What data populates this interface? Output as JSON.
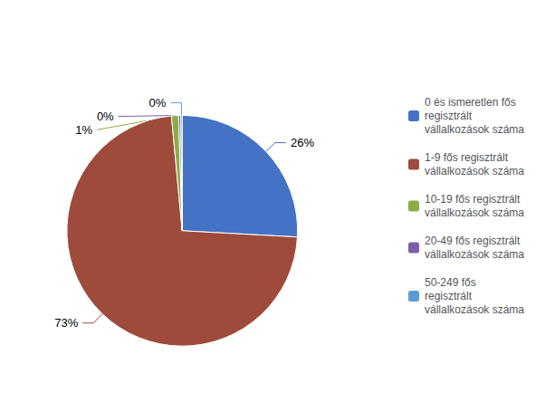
{
  "chart_data": {
    "type": "pie",
    "categories": [
      "0 és ismeretlen fős\nregisztrált\nvállalkozások száma",
      "1-9 fős regisztrált\nvállalkozások száma",
      "10-19 fős regisztrált\nvállalkozások száma",
      "20-49 fős regisztrált\nvállalkozások száma",
      "50-249 fős\nregisztrált\nvállalkozások száma"
    ],
    "values": [
      26,
      73,
      1,
      0.3,
      0.2
    ],
    "value_labels": [
      "26%",
      "73%",
      "1%",
      "0%",
      "0%"
    ],
    "colors": [
      "#4472C4",
      "#9E4B3B",
      "#8BAD45",
      "#7B5EA7",
      "#5B9BD5"
    ],
    "legend": "right"
  }
}
